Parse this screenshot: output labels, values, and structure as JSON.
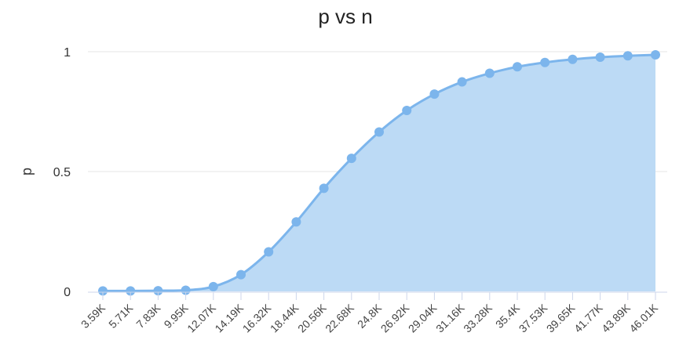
{
  "chart_data": {
    "type": "area",
    "title": "p vs n",
    "xlabel": "",
    "ylabel": "p",
    "categories": [
      "3.59K",
      "5.71K",
      "7.83K",
      "9.95K",
      "12.07K",
      "14.19K",
      "16.32K",
      "18.44K",
      "20.56K",
      "22.68K",
      "24.8K",
      "26.92K",
      "29.04K",
      "31.16K",
      "33.28K",
      "35.4K",
      "37.53K",
      "39.65K",
      "41.77K",
      "43.89K",
      "46.01K"
    ],
    "series": [
      {
        "values": [
          0.002,
          0.002,
          0.003,
          0.005,
          0.02,
          0.07,
          0.165,
          0.29,
          0.43,
          0.555,
          0.665,
          0.755,
          0.823,
          0.874,
          0.91,
          0.937,
          0.955,
          0.968,
          0.977,
          0.983,
          0.987
        ]
      }
    ],
    "yticks": [
      0,
      0.5,
      1
    ],
    "ytick_labels": [
      "0",
      "0.5",
      "1"
    ],
    "ylim": [
      0,
      1
    ],
    "grid": true,
    "legend": "none",
    "colors": {
      "line": "#7cb5ec",
      "fill": "#bcdaf5",
      "grid": "#e6e6e6",
      "axis": "#ccd6eb"
    }
  }
}
